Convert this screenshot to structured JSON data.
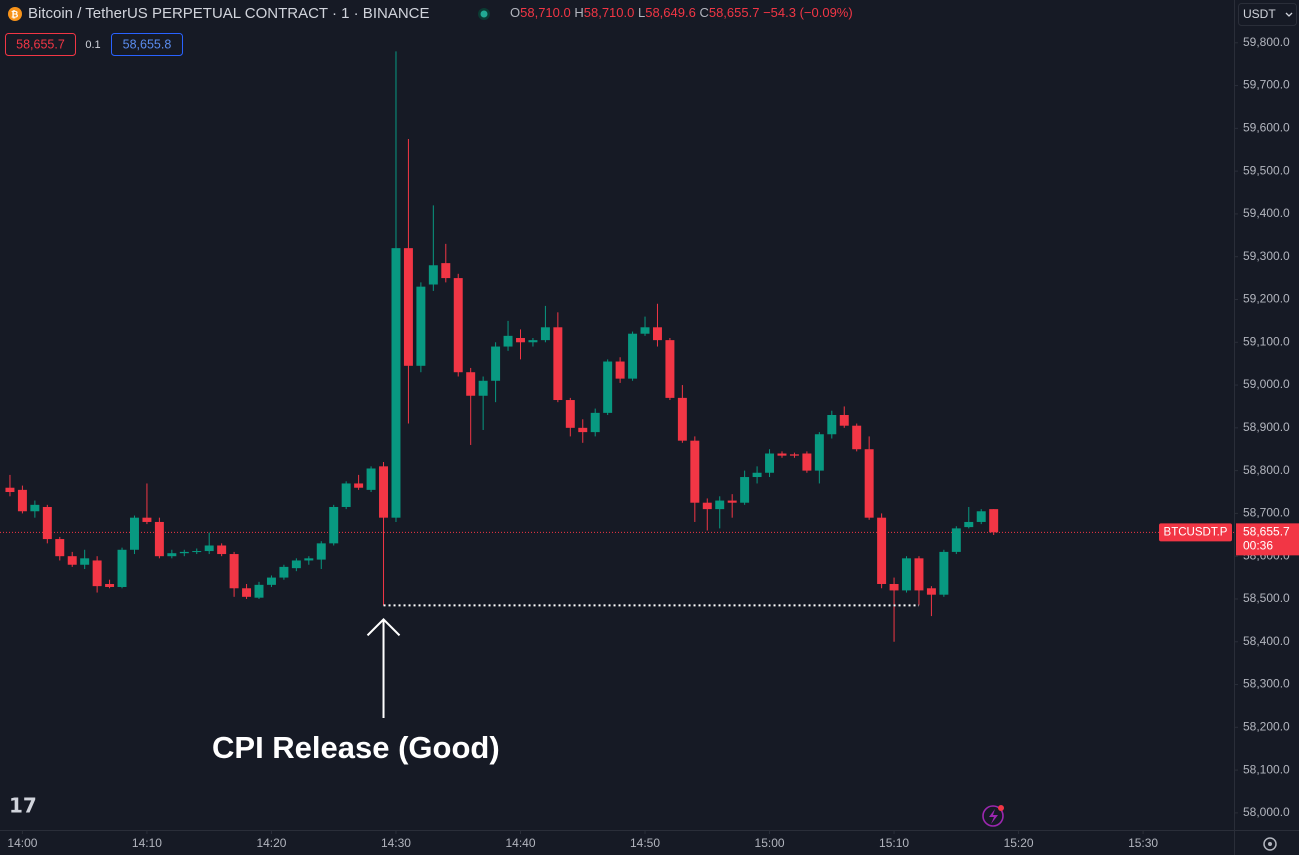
{
  "chart_data": {
    "type": "candlestick",
    "title": "Bitcoin / TetherUS PERPETUAL CONTRACT · 1 · BINANCE",
    "legend": {
      "open_prefix": "O",
      "open": "58,710.0",
      "high_prefix": "H",
      "high": "58,710.0",
      "low_prefix": "L",
      "low": "58,649.6",
      "close_prefix": "C",
      "close": "58,655.7",
      "change": "−54.3 (−0.09%)"
    },
    "bid": "58,655.7",
    "spread": "0.1",
    "ask": "58,655.8",
    "currency": "USDT",
    "symbol_tag": "BTCUSDT.P",
    "price_tag": "58,655.7",
    "countdown": "00:36",
    "annotation": "CPI Release (Good)",
    "up_color": "#089981",
    "down_color": "#f23645",
    "x": [
      839,
      840,
      841,
      842,
      843,
      844,
      845,
      846,
      847,
      848,
      849,
      850,
      851,
      852,
      853,
      854,
      855,
      856,
      857,
      858,
      859,
      860,
      861,
      862,
      863,
      864,
      865,
      866,
      867,
      868,
      869,
      870,
      871,
      872,
      873,
      874,
      875,
      876,
      877,
      878,
      879,
      880,
      881,
      882,
      883,
      884,
      885,
      886,
      887,
      888,
      889,
      890,
      891,
      892,
      893,
      894,
      895,
      896,
      897,
      898,
      899,
      900,
      901,
      902,
      903,
      904,
      905,
      906,
      907,
      908,
      909,
      910,
      911,
      912,
      913,
      914,
      915,
      916,
      917,
      918
    ],
    "open": [
      58760,
      58755,
      58705,
      58715,
      58640,
      58600,
      58580,
      58590,
      58535,
      58528,
      58615,
      58690,
      58680,
      58600,
      58607,
      58610,
      58612,
      58625,
      58605,
      58525,
      58503,
      58533,
      58550,
      58572,
      58590,
      58592,
      58630,
      58715,
      58770,
      58755,
      58810,
      58690,
      59320,
      59045,
      59235,
      59285,
      59250,
      59030,
      58975,
      59010,
      59090,
      59110,
      59100,
      59105,
      59135,
      58965,
      58900,
      58890,
      58935,
      59055,
      59015,
      59120,
      59135,
      59105,
      58970,
      58870,
      58725,
      58710,
      58730,
      58725,
      58785,
      58795,
      58840,
      58838,
      58840,
      58800,
      58885,
      58930,
      58905,
      58850,
      58690,
      58535,
      58520,
      58595,
      58525,
      58510,
      58610,
      58668,
      58680,
      58710
    ],
    "high": [
      58790,
      58765,
      58730,
      58720,
      58645,
      58610,
      58615,
      58600,
      58545,
      58620,
      58695,
      58770,
      58690,
      58615,
      58615,
      58618,
      58655,
      58630,
      58610,
      58535,
      58540,
      58555,
      58580,
      58595,
      58600,
      58635,
      58720,
      58775,
      58790,
      58810,
      58820,
      59780,
      59575,
      59240,
      59420,
      59330,
      59260,
      59040,
      59020,
      59100,
      59150,
      59130,
      59110,
      59185,
      59170,
      58970,
      58920,
      58945,
      59060,
      59065,
      59125,
      59160,
      59190,
      59110,
      59000,
      58880,
      58735,
      58740,
      58745,
      58800,
      58810,
      58850,
      58845,
      58842,
      58845,
      58890,
      58940,
      58950,
      58910,
      58880,
      58700,
      58550,
      58600,
      58600,
      58530,
      58615,
      58670,
      58715,
      58710,
      58710
    ],
    "low": [
      58740,
      58700,
      58690,
      58630,
      58590,
      58575,
      58570,
      58515,
      58525,
      58525,
      58605,
      58675,
      58595,
      58595,
      58600,
      58605,
      58605,
      58600,
      58505,
      58500,
      58500,
      58528,
      58545,
      58565,
      58580,
      58570,
      58625,
      58710,
      58755,
      58750,
      58485,
      58680,
      58910,
      59030,
      59220,
      59240,
      59020,
      58860,
      58895,
      58960,
      59080,
      59060,
      59090,
      59100,
      58960,
      58880,
      58865,
      58880,
      58930,
      59005,
      59010,
      59115,
      59090,
      58965,
      58865,
      58680,
      58660,
      58665,
      58690,
      58720,
      58770,
      58785,
      58830,
      58830,
      58795,
      58770,
      58875,
      58900,
      58845,
      58685,
      58525,
      58400,
      58515,
      58485,
      58460,
      58505,
      58605,
      58665,
      58675,
      58649.6
    ],
    "close": [
      58750,
      58705,
      58720,
      58640,
      58600,
      58580,
      58595,
      58530,
      58528,
      58615,
      58690,
      58680,
      58600,
      58607,
      58610,
      58612,
      58625,
      58605,
      58525,
      58505,
      58533,
      58550,
      58575,
      58590,
      58595,
      58630,
      58715,
      58770,
      58760,
      58805,
      58690,
      59320,
      59045,
      59230,
      59280,
      59250,
      59030,
      58975,
      59010,
      59090,
      59115,
      59100,
      59105,
      59135,
      58965,
      58900,
      58890,
      58935,
      59055,
      59015,
      59120,
      59135,
      59105,
      58970,
      58870,
      58725,
      58710,
      58730,
      58725,
      58785,
      58795,
      58840,
      58835,
      58835,
      58800,
      58885,
      58930,
      58905,
      58850,
      58690,
      58535,
      58520,
      58595,
      58520,
      58510,
      58610,
      58665,
      58680,
      58705,
      58655.7
    ],
    "xlim": [
      838.2,
      937.3
    ],
    "xticks": [
      {
        "value": 840,
        "label": "14:00"
      },
      {
        "value": 850,
        "label": "14:10"
      },
      {
        "value": 860,
        "label": "14:20"
      },
      {
        "value": 870,
        "label": "14:30"
      },
      {
        "value": 880,
        "label": "14:40"
      },
      {
        "value": 890,
        "label": "14:50"
      },
      {
        "value": 900,
        "label": "15:00"
      },
      {
        "value": 910,
        "label": "15:10"
      },
      {
        "value": 920,
        "label": "15:20"
      },
      {
        "value": 930,
        "label": "15:30"
      }
    ],
    "ylim": [
      57960,
      59900
    ],
    "yticks": [
      {
        "value": 58000,
        "label": "58,000.0"
      },
      {
        "value": 58100,
        "label": "58,100.0"
      },
      {
        "value": 58200,
        "label": "58,200.0"
      },
      {
        "value": 58300,
        "label": "58,300.0"
      },
      {
        "value": 58400,
        "label": "58,400.0"
      },
      {
        "value": 58500,
        "label": "58,500.0"
      },
      {
        "value": 58600,
        "label": "58,600.0"
      },
      {
        "value": 58700,
        "label": "58,700.0"
      },
      {
        "value": 58800,
        "label": "58,800.0"
      },
      {
        "value": 58900,
        "label": "58,900.0"
      },
      {
        "value": 59000,
        "label": "59,000.0"
      },
      {
        "value": 59100,
        "label": "59,100.0"
      },
      {
        "value": 59200,
        "label": "59,200.0"
      },
      {
        "value": 59300,
        "label": "59,300.0"
      },
      {
        "value": 59400,
        "label": "59,400.0"
      },
      {
        "value": 59500,
        "label": "59,500.0"
      },
      {
        "value": 59600,
        "label": "59,600.0"
      },
      {
        "value": 59700,
        "label": "59,700.0"
      },
      {
        "value": 59800,
        "label": "59,800.0"
      }
    ],
    "grid": false
  }
}
